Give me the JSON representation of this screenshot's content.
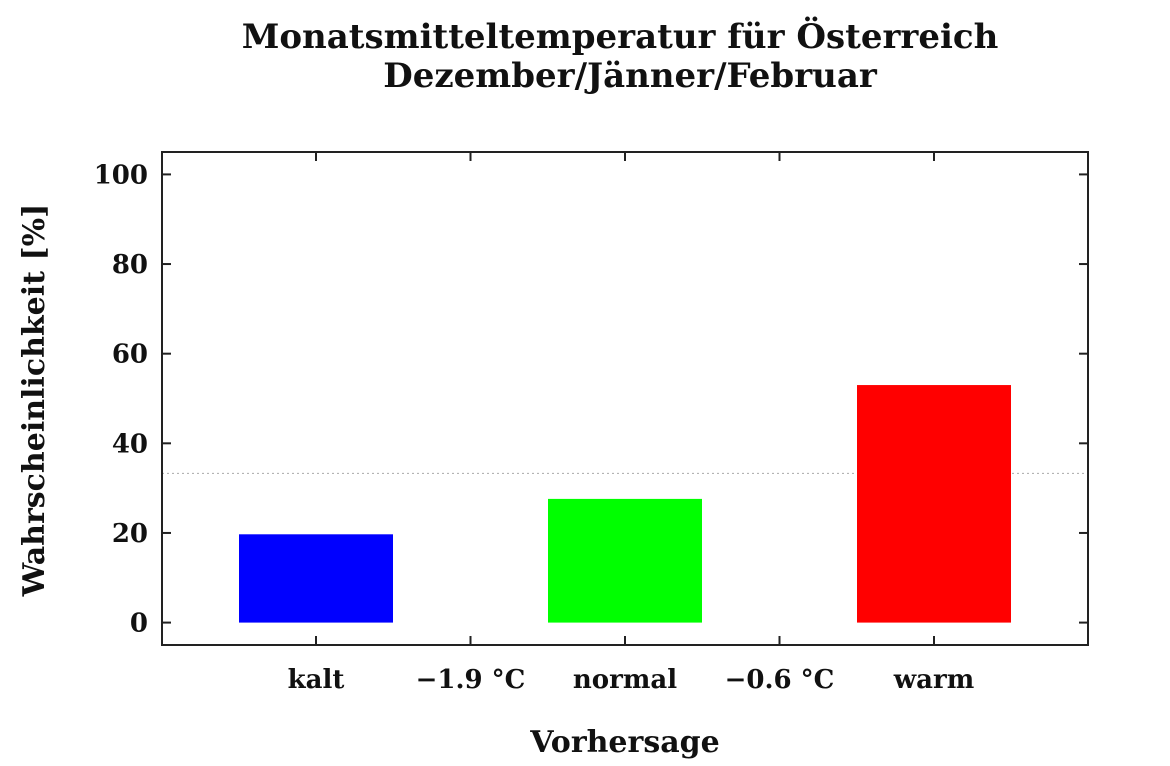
{
  "chart_data": {
    "type": "bar",
    "title": "Monatsmitteltemperatur für Österreich",
    "subtitle": "Dezember/Jänner/Februar",
    "xlabel": "Vorhersage",
    "ylabel": "Wahrscheinlichkeit [%]",
    "categories": [
      "kalt",
      "normal",
      "warm"
    ],
    "values": [
      19.7,
      27.6,
      53.0
    ],
    "colors": [
      "#0000ff",
      "#00ff00",
      "#ff0000"
    ],
    "threshold_labels": [
      "−1.9 °C",
      "−0.6 °C"
    ],
    "reference_line": 33.3,
    "ylim": [
      -5,
      105
    ],
    "yticks": [
      0,
      20,
      40,
      60,
      80,
      100
    ],
    "grid": false,
    "legend": false
  }
}
